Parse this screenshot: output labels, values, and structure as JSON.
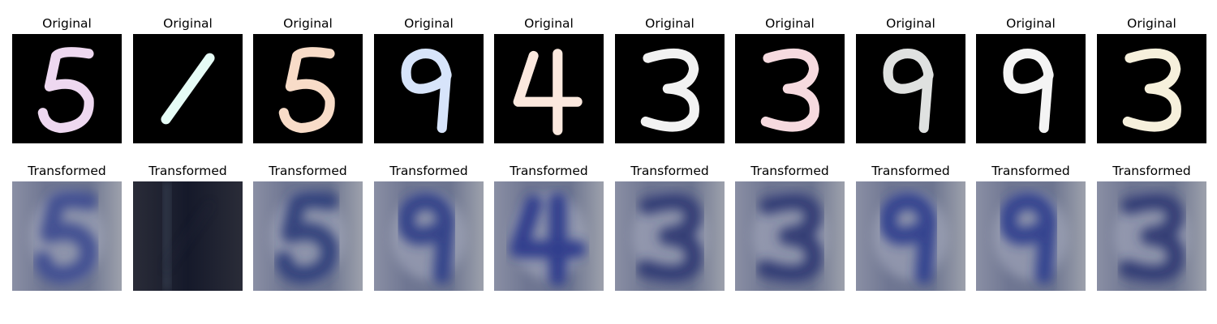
{
  "figure": {
    "rows": [
      {
        "key": "original",
        "images": [
          {
            "title": "Original",
            "digit": "5",
            "color": "#eed8f0",
            "style": "mnist"
          },
          {
            "title": "Original",
            "digit": "1",
            "color": "#e6fcf6",
            "style": "mnist"
          },
          {
            "title": "Original",
            "digit": "5",
            "color": "#f8dcc8",
            "style": "mnist"
          },
          {
            "title": "Original",
            "digit": "9",
            "color": "#d7e4fa",
            "style": "mnist"
          },
          {
            "title": "Original",
            "digit": "4",
            "color": "#fbe8de",
            "style": "mnist"
          },
          {
            "title": "Original",
            "digit": "3",
            "color": "#f2f2f2",
            "style": "mnist"
          },
          {
            "title": "Original",
            "digit": "3",
            "color": "#f6dadf",
            "style": "mnist"
          },
          {
            "title": "Original",
            "digit": "9",
            "color": "#dfe1e0",
            "style": "mnist"
          },
          {
            "title": "Original",
            "digit": "9",
            "color": "#f4f4f4",
            "style": "mnist"
          },
          {
            "title": "Original",
            "digit": "3",
            "color": "#f6f0dc",
            "style": "mnist"
          }
        ]
      },
      {
        "key": "transformed",
        "images": [
          {
            "title": "Transformed",
            "digit": "5",
            "color": "#3a4a90",
            "style": "svhn"
          },
          {
            "title": "Transformed",
            "digit": "1",
            "color": "#1c2236",
            "style": "svhn-dark"
          },
          {
            "title": "Transformed",
            "digit": "5",
            "color": "#2c3a78",
            "style": "svhn"
          },
          {
            "title": "Transformed",
            "digit": "9",
            "color": "#2c3a86",
            "style": "svhn"
          },
          {
            "title": "Transformed",
            "digit": "4",
            "color": "#28358a",
            "style": "svhn"
          },
          {
            "title": "Transformed",
            "digit": "3",
            "color": "#2a3470",
            "style": "svhn"
          },
          {
            "title": "Transformed",
            "digit": "3",
            "color": "#2a3470",
            "style": "svhn"
          },
          {
            "title": "Transformed",
            "digit": "9",
            "color": "#2b3a8c",
            "style": "svhn"
          },
          {
            "title": "Transformed",
            "digit": "9",
            "color": "#2b3a8c",
            "style": "svhn"
          },
          {
            "title": "Transformed",
            "digit": "3",
            "color": "#2a3470",
            "style": "svhn"
          }
        ]
      }
    ]
  }
}
